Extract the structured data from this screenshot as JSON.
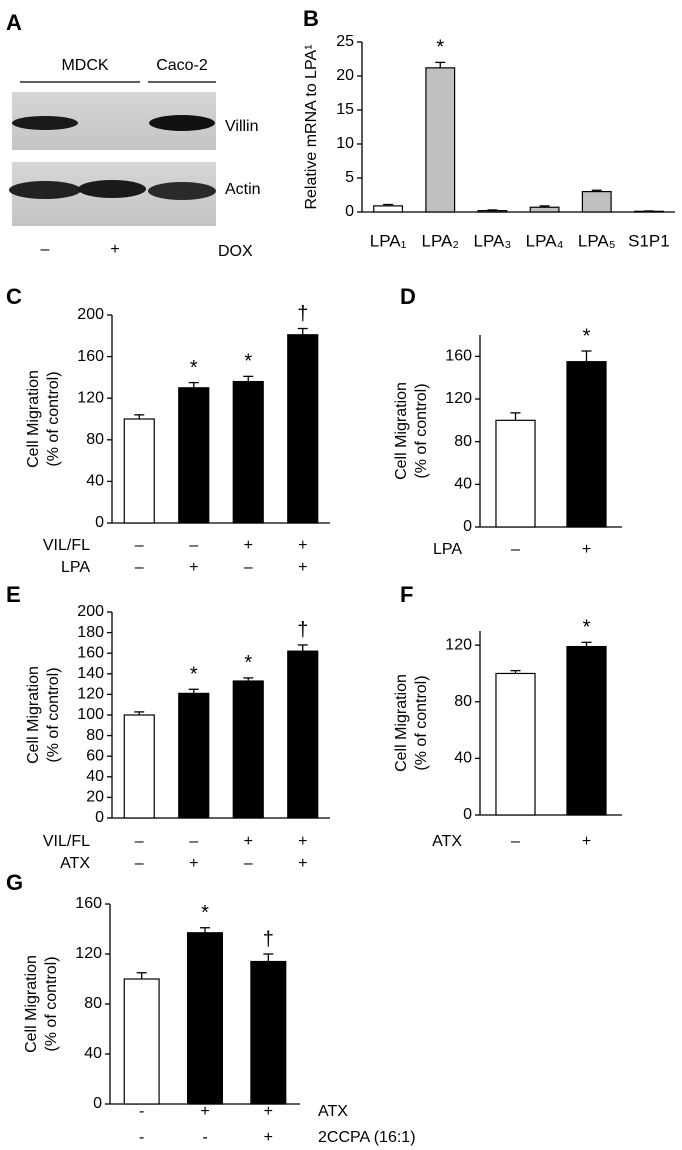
{
  "blot": {
    "panel": "A",
    "groups": [
      "MDCK",
      "Caco-2"
    ],
    "rows": [
      "Villin",
      "Actin"
    ],
    "treatment_label": "DOX",
    "treatments": [
      "–",
      "+"
    ]
  },
  "chart_data": [
    {
      "type": "bar",
      "panel": "B",
      "ylabel": [
        "Relative mRNA to LPA¹"
      ],
      "categories": [
        "LPA₁",
        "LPA₂",
        "LPA₃",
        "LPA₄",
        "LPA₅",
        "S1P1"
      ],
      "values": [
        0.9,
        21.2,
        0.2,
        0.7,
        3.0,
        0.1
      ],
      "errors": [
        0.2,
        0.8,
        0.1,
        0.2,
        0.2,
        0.05
      ],
      "colors": [
        "#ffffff",
        "#c0c0c0",
        "#c0c0c0",
        "#c0c0c0",
        "#c0c0c0",
        "#c0c0c0"
      ],
      "annotations": [
        null,
        "*",
        null,
        null,
        null,
        null
      ],
      "ylim": [
        0,
        25
      ],
      "yticks": [
        0,
        5,
        10,
        15,
        20,
        25
      ]
    },
    {
      "type": "bar",
      "panel": "C",
      "ylabel": [
        "Cell Migration",
        "(% of control)"
      ],
      "values": [
        100,
        130,
        136,
        181
      ],
      "errors": [
        4,
        5,
        5,
        6
      ],
      "colors": [
        "#ffffff",
        "#000000",
        "#000000",
        "#000000"
      ],
      "annotations": [
        null,
        "*",
        "*",
        "†"
      ],
      "factors": [
        {
          "name": "VIL/FL",
          "levels": [
            "–",
            "–",
            "+",
            "+"
          ]
        },
        {
          "name": "LPA",
          "levels": [
            "–",
            "+",
            "–",
            "+"
          ]
        }
      ],
      "ylim": [
        0,
        200
      ],
      "yticks": [
        0,
        40,
        80,
        120,
        160,
        200
      ]
    },
    {
      "type": "bar",
      "panel": "D",
      "ylabel": [
        "Cell Migration",
        "(% of control)"
      ],
      "values": [
        100,
        155
      ],
      "errors": [
        7,
        10
      ],
      "colors": [
        "#ffffff",
        "#000000"
      ],
      "annotations": [
        null,
        "*"
      ],
      "factors": [
        {
          "name": "LPA",
          "levels": [
            "–",
            "+"
          ]
        }
      ],
      "ylim": [
        0,
        180
      ],
      "yticks": [
        0,
        40,
        80,
        120,
        160
      ]
    },
    {
      "type": "bar",
      "panel": "E",
      "ylabel": [
        "Cell Migration",
        "(% of control)"
      ],
      "values": [
        100,
        121,
        133,
        162
      ],
      "errors": [
        3,
        4,
        3,
        6
      ],
      "colors": [
        "#ffffff",
        "#000000",
        "#000000",
        "#000000"
      ],
      "annotations": [
        null,
        "*",
        "*",
        "†"
      ],
      "factors": [
        {
          "name": "VIL/FL",
          "levels": [
            "–",
            "–",
            "+",
            "+"
          ]
        },
        {
          "name": "ATX",
          "levels": [
            "–",
            "+",
            "–",
            "+"
          ]
        }
      ],
      "ylim": [
        0,
        200
      ],
      "yticks": [
        0,
        20,
        40,
        60,
        80,
        100,
        120,
        140,
        160,
        180,
        200
      ]
    },
    {
      "type": "bar",
      "panel": "F",
      "ylabel": [
        "Cell Migration",
        "(% of control)"
      ],
      "values": [
        100,
        119
      ],
      "errors": [
        2,
        3
      ],
      "colors": [
        "#ffffff",
        "#000000"
      ],
      "annotations": [
        null,
        "*"
      ],
      "factors": [
        {
          "name": "ATX",
          "levels": [
            "–",
            "+"
          ]
        }
      ],
      "ylim": [
        0,
        130
      ],
      "yticks": [
        0,
        40,
        80,
        120
      ]
    },
    {
      "type": "bar",
      "panel": "G",
      "ylabel": [
        "Cell Migration",
        "(% of control)"
      ],
      "values": [
        100,
        137,
        114
      ],
      "errors": [
        5,
        4,
        6
      ],
      "colors": [
        "#ffffff",
        "#000000",
        "#000000"
      ],
      "annotations": [
        null,
        "*",
        "†"
      ],
      "factors": [
        {
          "name": "ATX",
          "levels": [
            "-",
            "+",
            "+"
          ]
        },
        {
          "name": "2CCPA (16:1)",
          "levels": [
            "-",
            "-",
            "+"
          ]
        }
      ],
      "ylim": [
        0,
        160
      ],
      "yticks": [
        0,
        40,
        80,
        120,
        160
      ]
    }
  ]
}
